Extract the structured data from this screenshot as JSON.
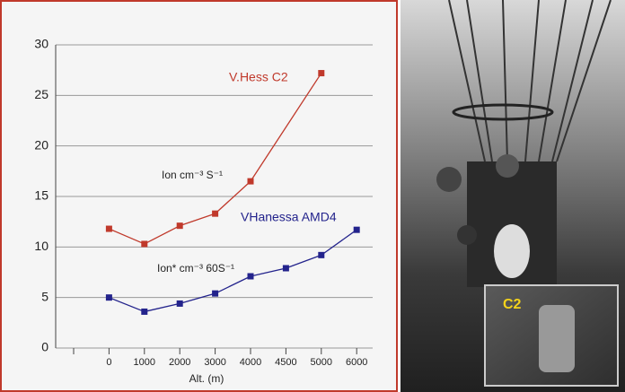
{
  "chart_data": {
    "type": "line",
    "categories": [
      null,
      "0",
      "1000",
      "2000",
      "3000",
      "4000",
      "4500",
      "5000",
      "6000"
    ],
    "series": [
      {
        "name": "V.Hess C2",
        "color": "#c0392b",
        "values": [
          null,
          11.8,
          10.3,
          12.1,
          13.3,
          16.5,
          null,
          27.2,
          null
        ]
      },
      {
        "name": "VHanessa AMD4",
        "color": "#23238c",
        "values": [
          null,
          5.0,
          3.6,
          4.4,
          5.4,
          7.1,
          7.9,
          9.2,
          11.7
        ]
      }
    ],
    "annotations": [
      "Ion cm⁻³ S⁻¹",
      "Ion* cm⁻³ 60S⁻¹"
    ],
    "xlabel": "Alt. (m)",
    "ylim": [
      0,
      30
    ],
    "yticks": [
      0,
      5,
      10,
      15,
      20,
      25,
      30
    ],
    "grid": true
  },
  "photo": {
    "label": "C2"
  }
}
